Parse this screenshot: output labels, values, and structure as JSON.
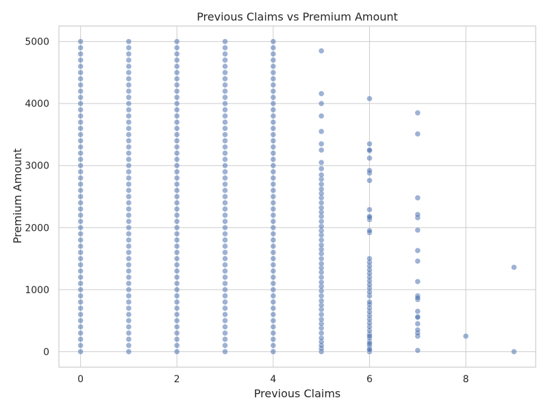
{
  "chart_data": {
    "type": "scatter",
    "title": "Previous Claims vs Premium Amount",
    "xlabel": "Previous Claims",
    "ylabel": "Premium Amount",
    "xlim": [
      -0.45,
      9.45
    ],
    "ylim": [
      -250,
      5250
    ],
    "xticks": [
      0,
      2,
      4,
      6,
      8
    ],
    "yticks": [
      0,
      1000,
      2000,
      3000,
      4000,
      5000
    ],
    "grid": true,
    "legend": "none",
    "colors": {
      "point": "#4c72b0",
      "grid": "#cccccc",
      "spine": "#cccccc",
      "text": "#262626"
    },
    "series": [
      {
        "points_x": [
          0,
          0,
          0,
          0,
          0,
          0,
          0,
          0,
          0,
          0,
          0,
          0,
          0,
          0,
          0,
          0,
          0,
          0,
          0,
          0,
          0,
          0,
          0,
          0,
          0,
          0,
          0,
          0,
          0,
          0,
          0,
          0,
          0,
          0,
          0,
          0,
          0,
          0,
          0,
          0,
          0,
          0,
          0,
          0,
          0,
          0,
          0,
          0,
          0,
          0,
          0,
          1,
          1,
          1,
          1,
          1,
          1,
          1,
          1,
          1,
          1,
          1,
          1,
          1,
          1,
          1,
          1,
          1,
          1,
          1,
          1,
          1,
          1,
          1,
          1,
          1,
          1,
          1,
          1,
          1,
          1,
          1,
          1,
          1,
          1,
          1,
          1,
          1,
          1,
          1,
          1,
          1,
          1,
          1,
          1,
          1,
          1,
          1,
          1,
          1,
          1,
          1,
          2,
          2,
          2,
          2,
          2,
          2,
          2,
          2,
          2,
          2,
          2,
          2,
          2,
          2,
          2,
          2,
          2,
          2,
          2,
          2,
          2,
          2,
          2,
          2,
          2,
          2,
          2,
          2,
          2,
          2,
          2,
          2,
          2,
          2,
          2,
          2,
          2,
          2,
          2,
          2,
          2,
          2,
          2,
          2,
          2,
          2,
          2,
          2,
          2,
          2,
          2,
          3,
          3,
          3,
          3,
          3,
          3,
          3,
          3,
          3,
          3,
          3,
          3,
          3,
          3,
          3,
          3,
          3,
          3,
          3,
          3,
          3,
          3,
          3,
          3,
          3,
          3,
          3,
          3,
          3,
          3,
          3,
          3,
          3,
          3,
          3,
          3,
          3,
          3,
          3,
          3,
          3,
          3,
          3,
          3,
          3,
          3,
          3,
          3,
          3,
          3,
          3,
          4,
          4,
          4,
          4,
          4,
          4,
          4,
          4,
          4,
          4,
          4,
          4,
          4,
          4,
          4,
          4,
          4,
          4,
          4,
          4,
          4,
          4,
          4,
          4,
          4,
          4,
          4,
          4,
          4,
          4,
          4,
          4,
          4,
          4,
          4,
          4,
          4,
          4,
          4,
          4,
          4,
          4,
          4,
          4,
          4,
          4,
          4,
          4,
          4,
          4,
          4,
          5,
          5,
          5,
          5,
          5,
          5,
          5,
          5,
          5,
          5,
          5,
          5,
          5,
          5,
          5,
          5,
          5,
          5,
          5,
          5,
          5,
          5,
          5,
          5,
          5,
          5,
          5,
          5,
          5,
          5,
          5,
          5,
          5,
          5,
          5,
          5,
          5,
          5,
          5,
          5,
          5,
          5,
          5,
          5,
          5,
          5,
          5,
          5,
          5,
          6,
          6,
          6,
          6,
          6,
          6,
          6,
          6,
          6,
          6,
          6,
          6,
          6,
          6,
          6,
          6,
          6,
          6,
          6,
          6,
          6,
          6,
          6,
          6,
          6,
          6,
          6,
          6,
          6,
          6,
          6,
          6,
          6,
          6,
          6,
          6,
          6,
          6,
          6,
          6,
          6,
          6,
          6,
          7,
          7,
          7,
          7,
          7,
          7,
          7,
          7,
          7,
          7,
          7,
          7,
          7,
          7,
          7,
          7,
          7,
          7,
          7,
          7,
          8,
          9,
          9
        ],
        "points_y": [
          0,
          100,
          200,
          300,
          400,
          500,
          600,
          700,
          800,
          900,
          1000,
          1100,
          1200,
          1300,
          1400,
          1500,
          1600,
          1700,
          1800,
          1900,
          2000,
          2100,
          2200,
          2300,
          2400,
          2500,
          2600,
          2700,
          2800,
          2900,
          3000,
          3100,
          3200,
          3300,
          3400,
          3500,
          3600,
          3700,
          3800,
          3900,
          4000,
          4100,
          4200,
          4300,
          4400,
          4500,
          4600,
          4700,
          4800,
          4900,
          5000,
          0,
          100,
          200,
          300,
          400,
          500,
          600,
          700,
          800,
          900,
          1000,
          1100,
          1200,
          1300,
          1400,
          1500,
          1600,
          1700,
          1800,
          1900,
          2000,
          2100,
          2200,
          2300,
          2400,
          2500,
          2600,
          2700,
          2800,
          2900,
          3000,
          3100,
          3200,
          3300,
          3400,
          3500,
          3600,
          3700,
          3800,
          3900,
          4000,
          4100,
          4200,
          4300,
          4400,
          4500,
          4600,
          4700,
          4800,
          4900,
          5000,
          0,
          100,
          200,
          300,
          400,
          500,
          600,
          700,
          800,
          900,
          1000,
          1100,
          1200,
          1300,
          1400,
          1500,
          1600,
          1700,
          1800,
          1900,
          2000,
          2100,
          2200,
          2300,
          2400,
          2500,
          2600,
          2700,
          2800,
          2900,
          3000,
          3100,
          3200,
          3300,
          3400,
          3500,
          3600,
          3700,
          3800,
          3900,
          4000,
          4100,
          4200,
          4300,
          4400,
          4500,
          4600,
          4700,
          4800,
          4900,
          5000,
          0,
          100,
          200,
          300,
          400,
          500,
          600,
          700,
          800,
          900,
          1000,
          1100,
          1200,
          1300,
          1400,
          1500,
          1600,
          1700,
          1800,
          1900,
          2000,
          2100,
          2200,
          2300,
          2400,
          2500,
          2600,
          2700,
          2800,
          2900,
          3000,
          3100,
          3200,
          3300,
          3400,
          3500,
          3600,
          3700,
          3800,
          3900,
          4000,
          4100,
          4200,
          4300,
          4400,
          4500,
          4600,
          4700,
          4800,
          4900,
          5000,
          0,
          100,
          200,
          300,
          400,
          500,
          600,
          700,
          800,
          900,
          1000,
          1100,
          1200,
          1300,
          1400,
          1500,
          1600,
          1700,
          1800,
          1900,
          2000,
          2100,
          2200,
          2300,
          2400,
          2500,
          2600,
          2700,
          2800,
          2900,
          3000,
          3100,
          3200,
          3300,
          3400,
          3500,
          3600,
          3700,
          3800,
          3900,
          4000,
          4100,
          4200,
          4300,
          4400,
          4500,
          4600,
          4700,
          4800,
          4900,
          5000,
          0,
          50,
          100,
          160,
          220,
          300,
          380,
          450,
          520,
          600,
          680,
          750,
          820,
          900,
          980,
          1050,
          1120,
          1200,
          1280,
          1350,
          1420,
          1500,
          1580,
          1650,
          1720,
          1800,
          1880,
          1950,
          2020,
          2100,
          2180,
          2250,
          2320,
          2400,
          2480,
          2550,
          2620,
          2700,
          2780,
          2850,
          2950,
          3050,
          3250,
          3350,
          3550,
          3800,
          4000,
          4160,
          4850,
          0,
          50,
          100,
          160,
          220,
          280,
          340,
          400,
          460,
          520,
          580,
          640,
          700,
          760,
          800,
          900,
          960,
          1020,
          1080,
          1140,
          1200,
          1260,
          1320,
          1380,
          1440,
          1500,
          1920,
          1950,
          2130,
          2160,
          2180,
          2290,
          2760,
          2880,
          2920,
          3120,
          3240,
          3250,
          3350,
          4080,
          30,
          130,
          250,
          20,
          250,
          300,
          350,
          450,
          550,
          560,
          650,
          840,
          900,
          1130,
          1460,
          1630,
          1960,
          2160,
          2210,
          2480,
          3510,
          3850,
          870,
          250,
          0,
          1360
        ]
      }
    ]
  }
}
